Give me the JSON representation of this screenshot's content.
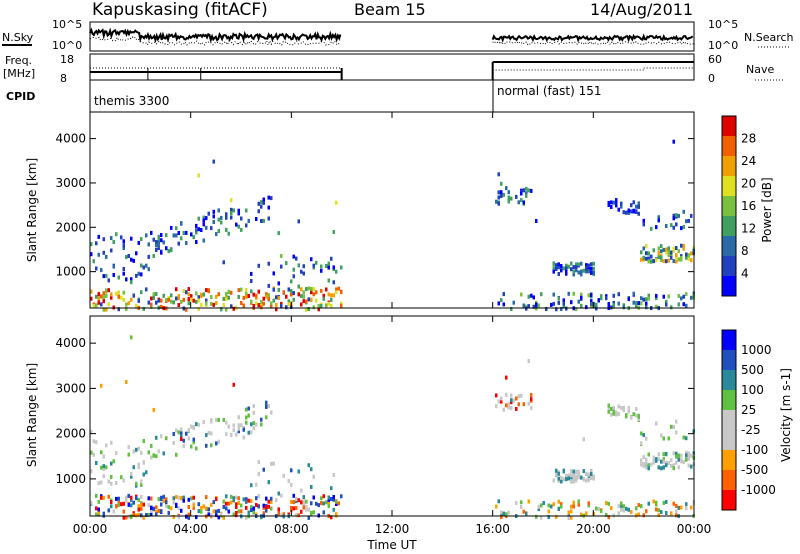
{
  "header": {
    "station": "Kapuskasing (fitACF)",
    "beam": "Beam 15",
    "date": "14/Aug/2011"
  },
  "sky_panel": {
    "left_label": "N.Sky",
    "right_label": "N.Search",
    "left_ticks": [
      "10^5",
      "10^0"
    ],
    "right_ticks": [
      "10^5",
      "10^0"
    ]
  },
  "freq_panel": {
    "left_label_1": "Freq.",
    "left_label_2": "[MHz]",
    "right_label": "Nave",
    "left_ticks": [
      "18",
      "8"
    ],
    "right_ticks": [
      "60",
      "0"
    ]
  },
  "cpid_panel": {
    "label": "CPID",
    "programs": [
      {
        "name": "themis 3300",
        "start_hour": 0,
        "end_hour": 10
      },
      {
        "name": "normal (fast) 151",
        "start_hour": 16,
        "end_hour": 24
      }
    ]
  },
  "chart_data": [
    {
      "type": "heatmap",
      "quantity": "Power",
      "ylabel": "Slant Range [km]",
      "xlabel": "Time UT",
      "xlim": [
        "00:00",
        "24:00"
      ],
      "ylim": [
        180,
        4600
      ],
      "x_ticks": [
        "00:00",
        "04:00",
        "08:00",
        "12:00",
        "16:00",
        "20:00",
        "00:00"
      ],
      "y_ticks": [
        1000,
        2000,
        3000,
        4000
      ],
      "colorbar": {
        "label": "Power [dB]",
        "ticks": [
          4,
          8,
          12,
          16,
          20,
          24,
          28
        ],
        "range": [
          0,
          30
        ]
      },
      "data_gaps": [
        [
          10,
          16
        ]
      ]
    },
    {
      "type": "heatmap",
      "quantity": "Velocity",
      "ylabel": "Slant Range [km]",
      "xlabel": "Time UT",
      "xlim": [
        "00:00",
        "24:00"
      ],
      "ylim": [
        180,
        4600
      ],
      "x_ticks": [
        "00:00",
        "04:00",
        "08:00",
        "12:00",
        "16:00",
        "20:00",
        "00:00"
      ],
      "y_ticks": [
        1000,
        2000,
        3000,
        4000
      ],
      "colorbar": {
        "label": "Velocity [m s-1]",
        "ticks": [
          1000,
          500,
          100,
          25,
          -25,
          -100,
          -500,
          -1000
        ]
      },
      "data_gaps": [
        [
          10,
          16
        ]
      ]
    }
  ],
  "colors": {
    "power_scale": [
      "#0000ff",
      "#2040c0",
      "#2a6aa8",
      "#40a060",
      "#7ac040",
      "#e0e020",
      "#f0a000",
      "#f06000",
      "#e00000"
    ],
    "velocity_scale": [
      "#ff0000",
      "#ff6000",
      "#ffa000",
      "#c8c8c8",
      "#c8c8c8",
      "#60c040",
      "#2a8a9a",
      "#2050c0",
      "#0000ff"
    ]
  }
}
